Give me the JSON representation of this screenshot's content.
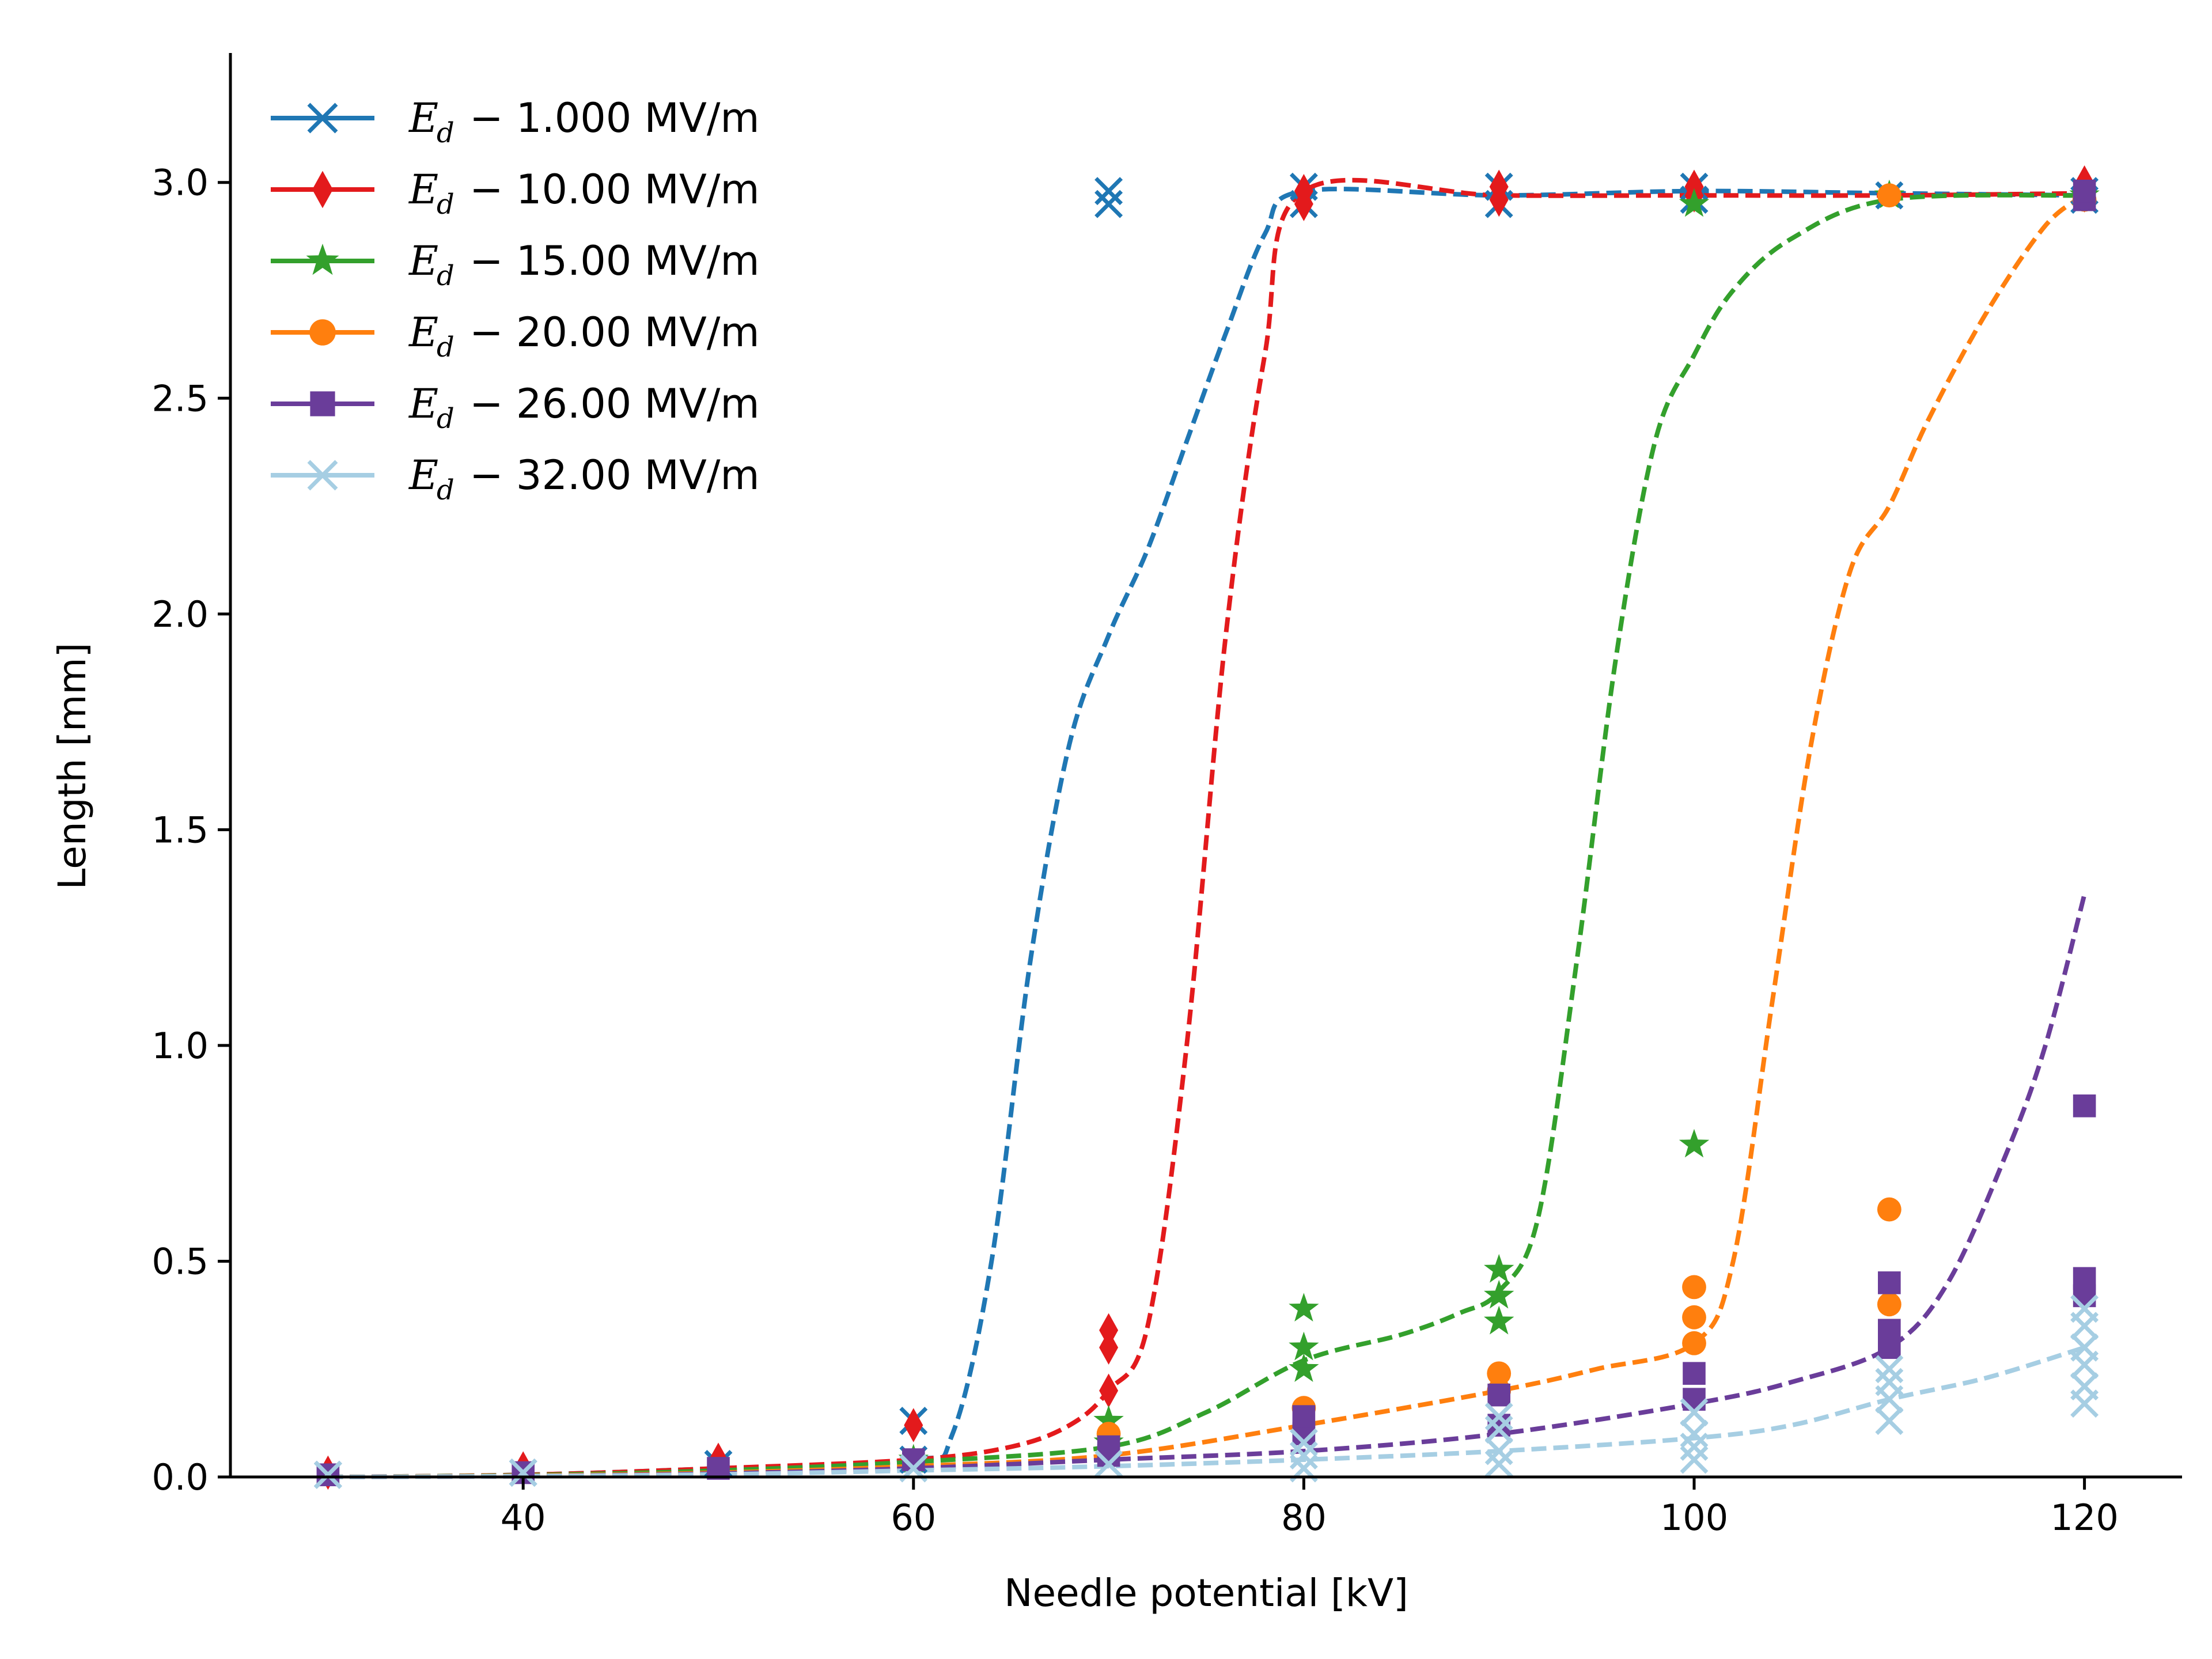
{
  "chart_data": {
    "type": "line",
    "title": "",
    "xlabel": "Needle potential [kV]",
    "ylabel": "Length [mm]",
    "xlim": [
      25,
      125
    ],
    "ylim": [
      0,
      3.3
    ],
    "xticks": [
      40,
      60,
      80,
      100,
      120
    ],
    "yticks": [
      0.0,
      0.5,
      1.0,
      1.5,
      2.0,
      2.5,
      3.0
    ],
    "xtick_labels": [
      "40",
      "60",
      "80",
      "100",
      "120"
    ],
    "ytick_labels": [
      "0.0",
      "0.5",
      "1.0",
      "1.5",
      "2.0",
      "2.5",
      "3.0"
    ],
    "legend_position": "top-left",
    "legend_symbol": "E",
    "legend_subscript": "d",
    "series": [
      {
        "name": "1.000 MV/m",
        "legend_label": "− 1.000 MV/m",
        "color": "#1f77b4",
        "marker": "x",
        "fit": [
          [
            30,
            0.0
          ],
          [
            40,
            0.005
          ],
          [
            50,
            0.02
          ],
          [
            60,
            0.04
          ],
          [
            62,
            0.1
          ],
          [
            64,
            0.5
          ],
          [
            66,
            1.2
          ],
          [
            68,
            1.7
          ],
          [
            70,
            1.95
          ],
          [
            72,
            2.15
          ],
          [
            74,
            2.4
          ],
          [
            76,
            2.65
          ],
          [
            78,
            2.88
          ],
          [
            80,
            2.98
          ],
          [
            90,
            2.97
          ],
          [
            100,
            2.98
          ],
          [
            110,
            2.975
          ],
          [
            120,
            2.97
          ]
        ],
        "points": [
          [
            30,
            0.005
          ],
          [
            40,
            0.01
          ],
          [
            50,
            0.03
          ],
          [
            60,
            0.13
          ],
          [
            60,
            0.04
          ],
          [
            70,
            2.95
          ],
          [
            70,
            2.98
          ],
          [
            80,
            2.95
          ],
          [
            80,
            2.99
          ],
          [
            90,
            2.95
          ],
          [
            90,
            2.99
          ],
          [
            100,
            2.96
          ],
          [
            100,
            2.99
          ],
          [
            110,
            2.97
          ],
          [
            120,
            2.96
          ],
          [
            120,
            2.98
          ]
        ]
      },
      {
        "name": "10.00 MV/m",
        "legend_label": "− 10.00 MV/m",
        "color": "#e31a1c",
        "marker": "diamond",
        "fit": [
          [
            30,
            0.0
          ],
          [
            40,
            0.005
          ],
          [
            50,
            0.02
          ],
          [
            60,
            0.04
          ],
          [
            65,
            0.07
          ],
          [
            68,
            0.12
          ],
          [
            70,
            0.2
          ],
          [
            72,
            0.35
          ],
          [
            74,
            1.0
          ],
          [
            76,
            1.95
          ],
          [
            78,
            2.6
          ],
          [
            80,
            2.98
          ],
          [
            90,
            2.97
          ],
          [
            100,
            2.97
          ],
          [
            110,
            2.97
          ],
          [
            120,
            2.975
          ]
        ],
        "points": [
          [
            30,
            0.01
          ],
          [
            40,
            0.02
          ],
          [
            50,
            0.04
          ],
          [
            60,
            0.12
          ],
          [
            70,
            0.2
          ],
          [
            70,
            0.3
          ],
          [
            70,
            0.34
          ],
          [
            80,
            2.95
          ],
          [
            80,
            2.98
          ],
          [
            90,
            2.96
          ],
          [
            90,
            2.99
          ],
          [
            100,
            2.97
          ],
          [
            100,
            2.99
          ],
          [
            120,
            2.97
          ],
          [
            120,
            3.0
          ]
        ]
      },
      {
        "name": "15.00 MV/m",
        "legend_label": "− 15.00 MV/m",
        "color": "#33a02c",
        "marker": "star",
        "fit": [
          [
            30,
            0.0
          ],
          [
            40,
            0.004
          ],
          [
            50,
            0.015
          ],
          [
            60,
            0.035
          ],
          [
            70,
            0.07
          ],
          [
            75,
            0.15
          ],
          [
            80,
            0.27
          ],
          [
            85,
            0.33
          ],
          [
            88,
            0.38
          ],
          [
            90,
            0.43
          ],
          [
            92,
            0.6
          ],
          [
            94,
            1.2
          ],
          [
            96,
            1.9
          ],
          [
            98,
            2.4
          ],
          [
            100,
            2.6
          ],
          [
            102,
            2.75
          ],
          [
            105,
            2.87
          ],
          [
            110,
            2.96
          ],
          [
            120,
            2.97
          ]
        ],
        "points": [
          [
            60,
            0.04
          ],
          [
            70,
            0.08
          ],
          [
            70,
            0.13
          ],
          [
            80,
            0.25
          ],
          [
            80,
            0.3
          ],
          [
            80,
            0.39
          ],
          [
            90,
            0.36
          ],
          [
            90,
            0.42
          ],
          [
            90,
            0.48
          ],
          [
            100,
            0.77
          ],
          [
            100,
            2.95
          ],
          [
            110,
            2.97
          ],
          [
            120,
            2.97
          ]
        ]
      },
      {
        "name": "20.00 MV/m",
        "legend_label": "− 20.00 MV/m",
        "color": "#ff7f0e",
        "marker": "circle",
        "fit": [
          [
            30,
            0.0
          ],
          [
            40,
            0.003
          ],
          [
            50,
            0.01
          ],
          [
            60,
            0.025
          ],
          [
            70,
            0.05
          ],
          [
            80,
            0.12
          ],
          [
            90,
            0.2
          ],
          [
            95,
            0.25
          ],
          [
            100,
            0.31
          ],
          [
            102,
            0.5
          ],
          [
            104,
            1.1
          ],
          [
            106,
            1.7
          ],
          [
            108,
            2.1
          ],
          [
            110,
            2.25
          ],
          [
            112,
            2.45
          ],
          [
            115,
            2.7
          ],
          [
            118,
            2.9
          ],
          [
            120,
            2.97
          ]
        ],
        "points": [
          [
            70,
            0.1
          ],
          [
            80,
            0.16
          ],
          [
            90,
            0.2
          ],
          [
            90,
            0.24
          ],
          [
            100,
            0.31
          ],
          [
            100,
            0.37
          ],
          [
            100,
            0.44
          ],
          [
            110,
            0.4
          ],
          [
            110,
            0.62
          ],
          [
            110,
            2.97
          ],
          [
            120,
            2.96
          ]
        ]
      },
      {
        "name": "26.00 MV/m",
        "legend_label": "− 26.00 MV/m",
        "color": "#6a3d9a",
        "marker": "square",
        "fit": [
          [
            30,
            0.0
          ],
          [
            40,
            0.002
          ],
          [
            50,
            0.008
          ],
          [
            60,
            0.02
          ],
          [
            70,
            0.04
          ],
          [
            80,
            0.06
          ],
          [
            90,
            0.1
          ],
          [
            100,
            0.17
          ],
          [
            105,
            0.22
          ],
          [
            110,
            0.3
          ],
          [
            113,
            0.45
          ],
          [
            116,
            0.75
          ],
          [
            118,
            1.0
          ],
          [
            120,
            1.35
          ]
        ],
        "points": [
          [
            30,
            0.005
          ],
          [
            40,
            0.01
          ],
          [
            50,
            0.02
          ],
          [
            60,
            0.04
          ],
          [
            70,
            0.05
          ],
          [
            70,
            0.07
          ],
          [
            80,
            0.1
          ],
          [
            80,
            0.14
          ],
          [
            90,
            0.12
          ],
          [
            90,
            0.19
          ],
          [
            100,
            0.18
          ],
          [
            100,
            0.24
          ],
          [
            110,
            0.3
          ],
          [
            110,
            0.34
          ],
          [
            110,
            0.45
          ],
          [
            120,
            0.42
          ],
          [
            120,
            0.46
          ],
          [
            120,
            0.86
          ],
          [
            120,
            2.96
          ],
          [
            120,
            2.98
          ]
        ]
      },
      {
        "name": "32.00 MV/m",
        "legend_label": "− 32.00 MV/m",
        "color": "#a6cee3",
        "marker": "x",
        "fit": [
          [
            30,
            0.0
          ],
          [
            40,
            0.002
          ],
          [
            50,
            0.006
          ],
          [
            60,
            0.015
          ],
          [
            70,
            0.025
          ],
          [
            80,
            0.04
          ],
          [
            90,
            0.06
          ],
          [
            100,
            0.09
          ],
          [
            105,
            0.12
          ],
          [
            110,
            0.18
          ],
          [
            115,
            0.23
          ],
          [
            120,
            0.3
          ]
        ],
        "points": [
          [
            30,
            0.005
          ],
          [
            40,
            0.01
          ],
          [
            60,
            0.02
          ],
          [
            70,
            0.03
          ],
          [
            80,
            0.02
          ],
          [
            80,
            0.05
          ],
          [
            80,
            0.08
          ],
          [
            90,
            0.03
          ],
          [
            90,
            0.06
          ],
          [
            90,
            0.11
          ],
          [
            90,
            0.14
          ],
          [
            100,
            0.04
          ],
          [
            100,
            0.07
          ],
          [
            100,
            0.1
          ],
          [
            100,
            0.15
          ],
          [
            110,
            0.13
          ],
          [
            110,
            0.18
          ],
          [
            110,
            0.22
          ],
          [
            110,
            0.25
          ],
          [
            120,
            0.17
          ],
          [
            120,
            0.21
          ],
          [
            120,
            0.26
          ],
          [
            120,
            0.3
          ],
          [
            120,
            0.35
          ],
          [
            120,
            0.39
          ]
        ]
      }
    ]
  }
}
